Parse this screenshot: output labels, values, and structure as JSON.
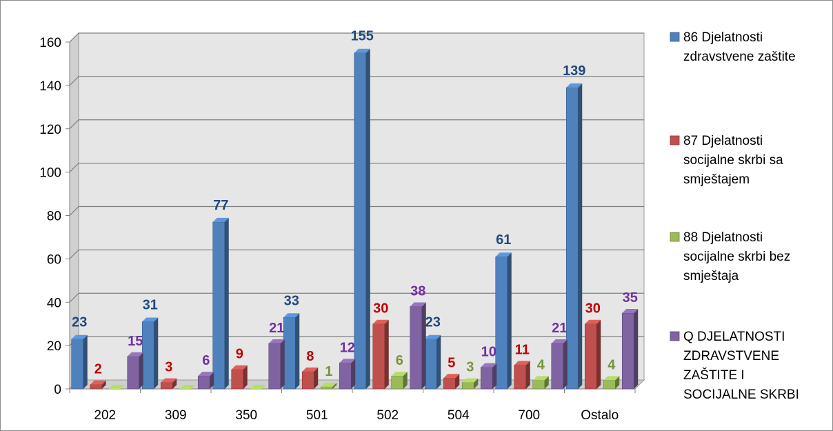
{
  "chart_data": {
    "type": "bar",
    "style": "clustered-3d-column",
    "categories": [
      "202",
      "309",
      "350",
      "501",
      "502",
      "504",
      "700",
      "Ostalo"
    ],
    "ylim": [
      0,
      160
    ],
    "yticks": [
      0,
      20,
      40,
      60,
      80,
      100,
      120,
      140,
      160
    ],
    "grid": true,
    "legend_position": "right",
    "series": [
      {
        "name": "86 Djelatnosti zdravstvene zaštite",
        "legend_lines": [
          "86 Djelatnosti",
          "zdravstvene zaštite"
        ],
        "color": "#4f81bd",
        "label_color": "#1f497d",
        "values": [
          23,
          31,
          77,
          33,
          155,
          23,
          61,
          139
        ]
      },
      {
        "name": "87 Djelatnosti socijalne skrbi sa smještajem",
        "legend_lines": [
          "87 Djelatnosti",
          "socijalne skrbi sa",
          "smještajem"
        ],
        "color": "#c0504d",
        "label_color": "#c00000",
        "values": [
          2,
          3,
          9,
          8,
          30,
          5,
          11,
          30
        ]
      },
      {
        "name": "88 Djelatnosti socijalne skrbi bez smještaja",
        "legend_lines": [
          "88 Djelatnosti",
          "socijalne skrbi bez",
          "smještaja"
        ],
        "color": "#9bbb59",
        "label_color": "#77933c",
        "values": [
          0,
          0,
          0,
          1,
          6,
          3,
          4,
          4
        ]
      },
      {
        "name": "Q DJELATNOSTI ZDRAVSTVENE ZAŠTITE I SOCIJALNE SKRBI",
        "legend_lines": [
          "Q DJELATNOSTI",
          "ZDRAVSTVENE",
          "ZAŠTITE I",
          "SOCIJALNE SKRBI"
        ],
        "color": "#8064a2",
        "label_color": "#7030a0",
        "values": [
          15,
          6,
          21,
          12,
          38,
          10,
          21,
          35
        ]
      }
    ]
  }
}
